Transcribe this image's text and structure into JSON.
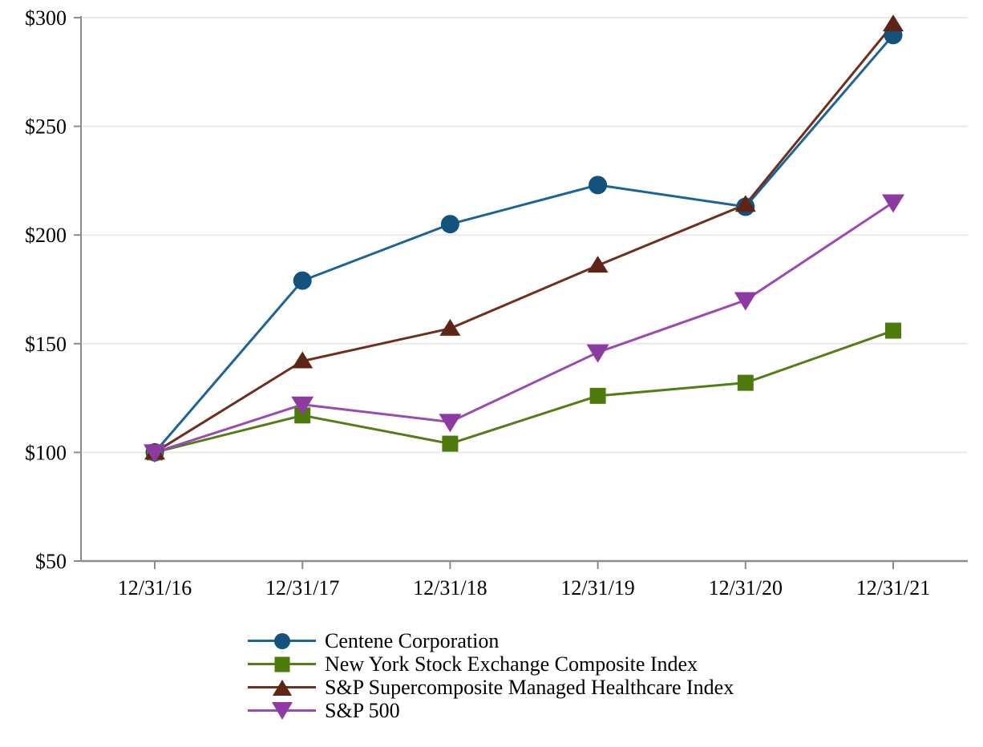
{
  "chart_data": {
    "type": "line",
    "title": "",
    "xlabel": "",
    "ylabel": "",
    "categories": [
      "12/31/16",
      "12/31/17",
      "12/31/18",
      "12/31/19",
      "12/31/20",
      "12/31/21"
    ],
    "series": [
      {
        "name": "Centene Corporation",
        "marker": "circle",
        "color": "#14527e",
        "line_color": "#1c6396",
        "values": [
          100,
          179,
          205,
          223,
          213,
          292
        ]
      },
      {
        "name": "New York Stock Exchange Composite Index",
        "marker": "square",
        "color": "#4d7a0d",
        "line_color": "#527e17",
        "values": [
          100,
          117,
          104,
          126,
          132,
          156
        ]
      },
      {
        "name": "S&P Supercomposite Managed Healthcare Index",
        "marker": "triangle-up",
        "color": "#5e2415",
        "line_color": "#6f2f1f",
        "values": [
          100,
          142,
          157,
          186,
          214,
          297
        ]
      },
      {
        "name": "S&P 500",
        "marker": "triangle-down",
        "color": "#8d3aa1",
        "line_color": "#9b4bb0",
        "values": [
          100,
          122,
          114,
          146,
          170,
          215
        ]
      }
    ],
    "ylim": [
      50,
      300
    ],
    "y_ticks": [
      {
        "value": 300,
        "label": "$300"
      },
      {
        "value": 250,
        "label": "$250"
      },
      {
        "value": 200,
        "label": "$200"
      },
      {
        "value": 150,
        "label": "$150"
      },
      {
        "value": 100,
        "label": "$100"
      },
      {
        "value": 50,
        "label": "$50"
      }
    ],
    "grid": "horizontal",
    "legend_position": "bottom-left",
    "axis_color": "#8c8c8c",
    "grid_color": "#e9e9e9",
    "text_color": "#000000"
  }
}
